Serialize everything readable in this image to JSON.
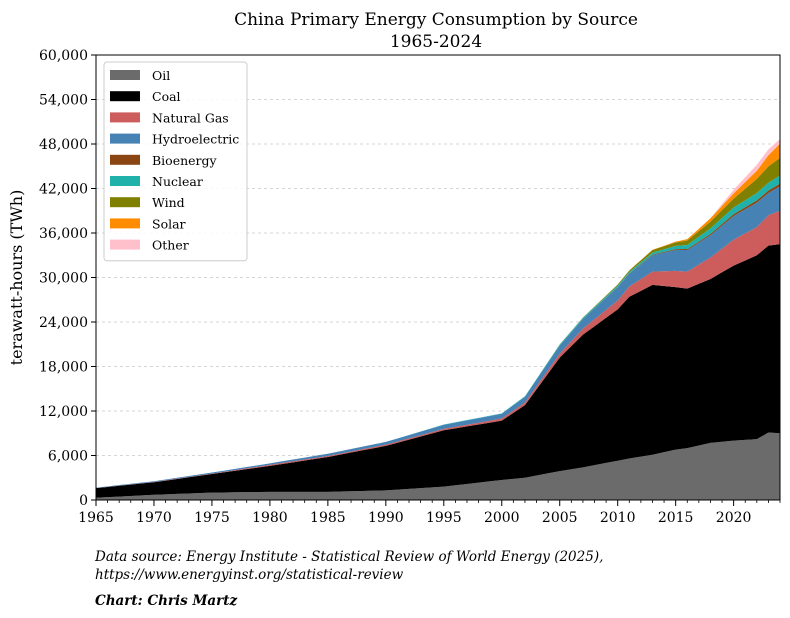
{
  "chart_data": {
    "type": "area",
    "stacked": true,
    "title": [
      "China Primary Energy Consumption by Source",
      "1965-2024"
    ],
    "ylabel": "terawatt-hours (TWh)",
    "xlabel": "",
    "xlim": [
      1965,
      2024
    ],
    "ylim": [
      0,
      60000
    ],
    "x_ticks": [
      1965,
      1970,
      1975,
      1980,
      1985,
      1990,
      1995,
      2000,
      2005,
      2010,
      2015,
      2020
    ],
    "y_ticks": [
      0,
      6000,
      12000,
      18000,
      24000,
      30000,
      36000,
      42000,
      48000,
      54000,
      60000
    ],
    "y_tick_labels": [
      "0",
      "6,000",
      "12,000",
      "18,000",
      "24,000",
      "30,000",
      "36,000",
      "42,000",
      "48,000",
      "54,000",
      "60,000"
    ],
    "grid": "horizontal-dashed",
    "legend_position": "top-left",
    "anchor_years": [
      1965,
      1970,
      1975,
      1980,
      1985,
      1990,
      1995,
      2000,
      2002,
      2005,
      2007,
      2010,
      2011,
      2013,
      2015,
      2016,
      2018,
      2020,
      2022,
      2023,
      2024
    ],
    "series": [
      {
        "name": "Oil",
        "color": "#6b6b6b",
        "values": [
          300,
          700,
          1000,
          1100,
          1100,
          1300,
          1800,
          2700,
          3000,
          3900,
          4400,
          5300,
          5600,
          6100,
          6800,
          7000,
          7700,
          8000,
          8200,
          9100,
          9000
        ]
      },
      {
        "name": "Coal",
        "color": "#000000",
        "values": [
          1300,
          1700,
          2500,
          3500,
          4700,
          6000,
          7600,
          8000,
          9800,
          15300,
          17900,
          20400,
          21800,
          22900,
          21900,
          21500,
          22100,
          23600,
          24800,
          25200,
          25500
        ]
      },
      {
        "name": "Natural Gas",
        "color": "#cd5c5c",
        "values": [
          10,
          30,
          60,
          140,
          140,
          160,
          190,
          280,
          330,
          540,
          800,
          1200,
          1400,
          1800,
          2200,
          2300,
          2900,
          3500,
          3800,
          4100,
          4500
        ]
      },
      {
        "name": "Hydroelectric",
        "color": "#4682b4",
        "values": [
          60,
          100,
          140,
          200,
          300,
          370,
          550,
          650,
          800,
          1100,
          1300,
          1800,
          1700,
          2200,
          2800,
          2900,
          3000,
          3200,
          3300,
          3000,
          3300
        ]
      },
      {
        "name": "Bioenergy",
        "color": "#8b4513",
        "values": [
          0,
          0,
          0,
          0,
          0,
          0,
          0,
          0,
          0,
          10,
          20,
          40,
          50,
          80,
          120,
          140,
          180,
          240,
          300,
          330,
          350
        ]
      },
      {
        "name": "Nuclear",
        "color": "#20b2aa",
        "values": [
          0,
          0,
          0,
          0,
          0,
          0,
          40,
          50,
          60,
          120,
          150,
          190,
          210,
          280,
          450,
          550,
          750,
          900,
          1000,
          1050,
          1100
        ]
      },
      {
        "name": "Wind",
        "color": "#808000",
        "values": [
          0,
          0,
          0,
          0,
          0,
          0,
          0,
          0,
          5,
          10,
          30,
          120,
          190,
          350,
          460,
          600,
          900,
          1200,
          1900,
          2200,
          2400
        ]
      },
      {
        "name": "Solar",
        "color": "#ff8c00",
        "values": [
          0,
          0,
          0,
          0,
          0,
          0,
          0,
          0,
          0,
          0,
          0,
          5,
          10,
          30,
          100,
          180,
          450,
          700,
          1100,
          1500,
          1900
        ]
      },
      {
        "name": "Other",
        "color": "#ffc0cb",
        "values": [
          0,
          0,
          0,
          0,
          0,
          0,
          0,
          0,
          0,
          0,
          0,
          0,
          0,
          0,
          0,
          0,
          0,
          500,
          800,
          800,
          600
        ]
      }
    ]
  },
  "footer": {
    "source_line1": "Data source: Energy Institute - Statistical Review of World Energy (2025),",
    "source_line2": "https://www.energyinst.org/statistical-review",
    "credit": "Chart: Chris Martz"
  }
}
